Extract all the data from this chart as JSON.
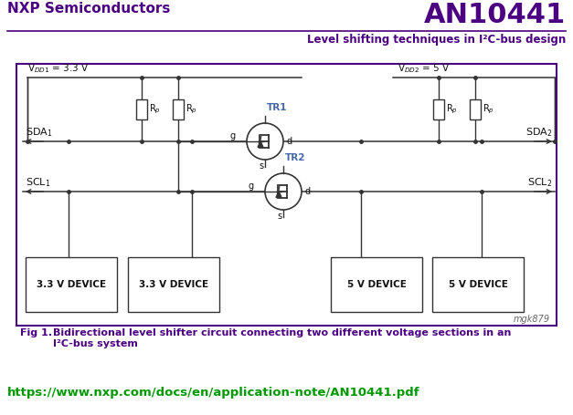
{
  "title_left": "NXP Semiconductors",
  "title_right": "AN10441",
  "subtitle": "Level shifting techniques in I²C-bus design",
  "header_color": "#4B0082",
  "url": "https://www.nxp.com/docs/en/application-note/AN10441.pdf",
  "url_color": "#009900",
  "fig_caption_bold": "Fig 1.",
  "fig_caption_text": "  Bidirectional level shifter circuit connecting two different voltage sections in an\n         I²C-bus system",
  "fig_caption_color": "#4B0082",
  "circuit_border_color": "#4B0082",
  "background_color": "#FFFFFF",
  "watermark": "mgk879",
  "device_labels": [
    "3.3 V DEVICE",
    "3.3 V DEVICE",
    "5 V DEVICE",
    "5 V DEVICE"
  ],
  "tr_label_color": "#4466AA",
  "wire_color": "#333333",
  "text_color": "#111111"
}
